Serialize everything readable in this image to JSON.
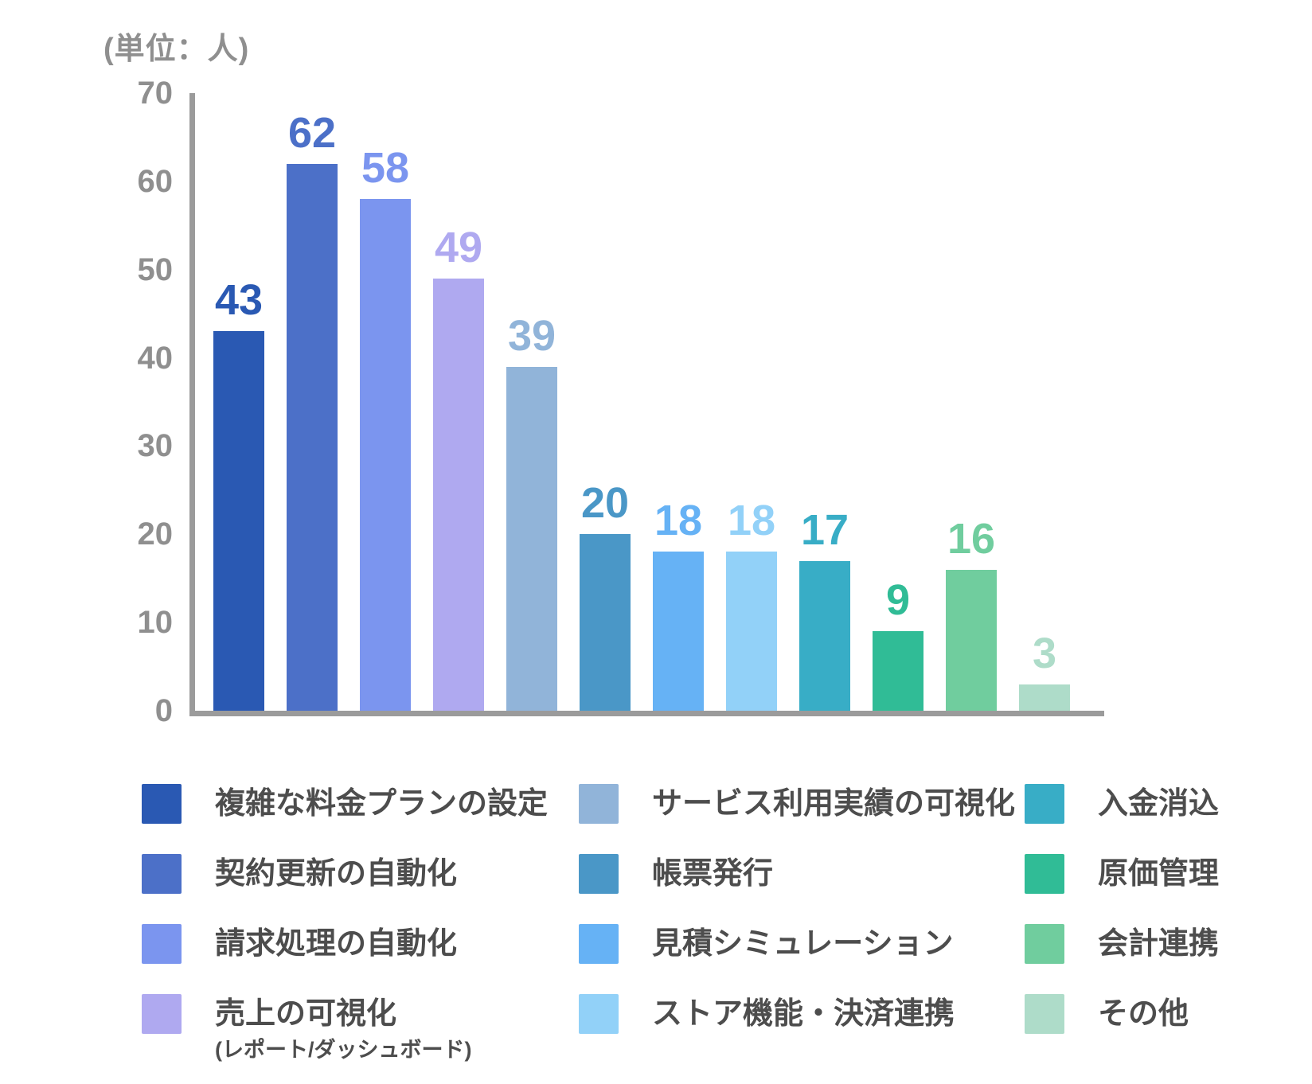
{
  "chart_data": {
    "type": "bar",
    "title": "",
    "unit_label": "(単位：人)",
    "xlabel": "",
    "ylabel": "",
    "ylim": [
      0,
      70
    ],
    "yticks": [
      0,
      10,
      20,
      30,
      40,
      50,
      60,
      70
    ],
    "grid": false,
    "value_labels": true,
    "legend_position": "bottom",
    "categories": [
      "複雑な料金プランの設定",
      "契約更新の自動化",
      "請求処理の自動化",
      "売上の可視化（レポート/ダッシュボード）",
      "サービス利用実績の可視化",
      "帳票発行",
      "見積シミュレーション",
      "ストア機能・決済連携",
      "入金消込",
      "原価管理",
      "会計連携",
      "その他"
    ],
    "values": [
      43,
      62,
      58,
      49,
      39,
      20,
      18,
      18,
      17,
      9,
      16,
      3
    ],
    "colors": [
      "#2A59B3",
      "#4C70C8",
      "#7B95EF",
      "#AFA9F0",
      "#91B4D9",
      "#4A97C7",
      "#66B2F5",
      "#92D1F8",
      "#38ADC6",
      "#30BC96",
      "#70CD9E",
      "#AEDCC9"
    ]
  },
  "axis": {
    "line_color": "#9B9B9B",
    "tick_text_color": "#8F8F8F"
  },
  "legend": {
    "text_color": "#4D4D4D",
    "columns": [
      [
        {
          "label": "複雑な料金プランの設定",
          "color": "#2A59B3"
        },
        {
          "label": "契約更新の自動化",
          "color": "#4C70C8"
        },
        {
          "label": "請求処理の自動化",
          "color": "#7B95EF"
        },
        {
          "label": "売上の可視化",
          "sublabel": "(レポート/ダッシュボード)",
          "color": "#AFA9F0"
        }
      ],
      [
        {
          "label": "サービス利用実績の可視化",
          "color": "#91B4D9"
        },
        {
          "label": "帳票発行",
          "color": "#4A97C7"
        },
        {
          "label": "見積シミュレーション",
          "color": "#66B2F5"
        },
        {
          "label": "ストア機能・決済連携",
          "color": "#92D1F8"
        }
      ],
      [
        {
          "label": "入金消込",
          "color": "#38ADC6"
        },
        {
          "label": "原価管理",
          "color": "#30BC96"
        },
        {
          "label": "会計連携",
          "color": "#70CD9E"
        },
        {
          "label": "その他",
          "color": "#AEDCC9"
        }
      ]
    ]
  }
}
